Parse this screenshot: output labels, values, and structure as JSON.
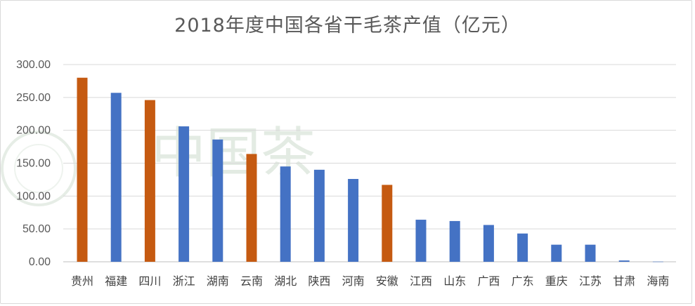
{
  "chart_data": {
    "type": "bar",
    "title": "2018年度中国各省干毛茶产值（亿元）",
    "watermark": "中国茶",
    "categories": [
      "贵州",
      "福建",
      "四川",
      "浙江",
      "湖南",
      "云南",
      "湖北",
      "陕西",
      "河南",
      "安徽",
      "江西",
      "山东",
      "广西",
      "广东",
      "重庆",
      "江苏",
      "甘肃",
      "海南"
    ],
    "values": [
      280,
      257,
      246,
      206,
      186,
      164,
      145,
      140,
      126,
      117,
      64,
      62,
      56,
      43,
      26,
      26,
      2,
      0.3
    ],
    "highlight": [
      "贵州",
      "四川",
      "云南",
      "安徽"
    ],
    "colors": {
      "default": "#4472c4",
      "highlight": "#c55a11"
    },
    "yticks": [
      "0.00",
      "50.00",
      "100.00",
      "150.00",
      "200.00",
      "250.00",
      "300.00"
    ],
    "ylim": [
      0,
      300
    ],
    "grid": true,
    "legend": "none"
  }
}
